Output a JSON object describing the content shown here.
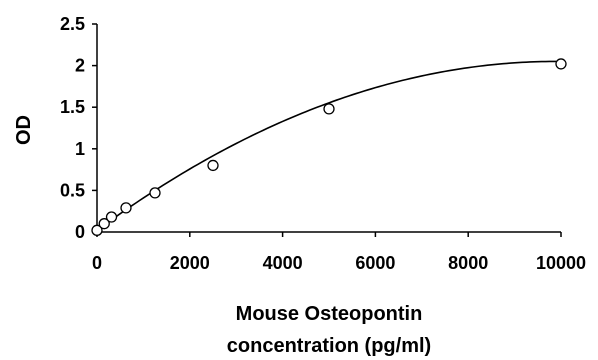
{
  "chart_data": {
    "type": "scatter",
    "title": "",
    "xlabel_lines": [
      "Mouse Osteopontin",
      "concentration (pg/ml)"
    ],
    "ylabel": "OD",
    "xlim": [
      0,
      10000
    ],
    "ylim": [
      0,
      2.5
    ],
    "x_ticks": [
      0,
      2000,
      4000,
      6000,
      8000,
      10000
    ],
    "x_tick_labels": [
      "0",
      "2000",
      "4000",
      "6000",
      "8000",
      "10000"
    ],
    "y_ticks": [
      0,
      0.5,
      1,
      1.5,
      2,
      2.5
    ],
    "y_tick_labels": [
      "0",
      "0.5",
      "1",
      "1.5",
      "2",
      "2.5"
    ],
    "grid": false,
    "legend": false,
    "series": [
      {
        "marker": "open-circle",
        "x": [
          0,
          156,
          313,
          625,
          1250,
          2500,
          5000,
          10000
        ],
        "y": [
          0.02,
          0.1,
          0.18,
          0.29,
          0.47,
          0.8,
          1.48,
          2.02
        ]
      }
    ],
    "fit": {
      "type": "polynomial-2",
      "coefficients": [
        0.02,
        0.00041,
        -2.07e-08
      ]
    },
    "colors": {
      "axis": "#000000",
      "line": "#000000",
      "marker_stroke": "#000000",
      "marker_fill": "#ffffff"
    }
  }
}
